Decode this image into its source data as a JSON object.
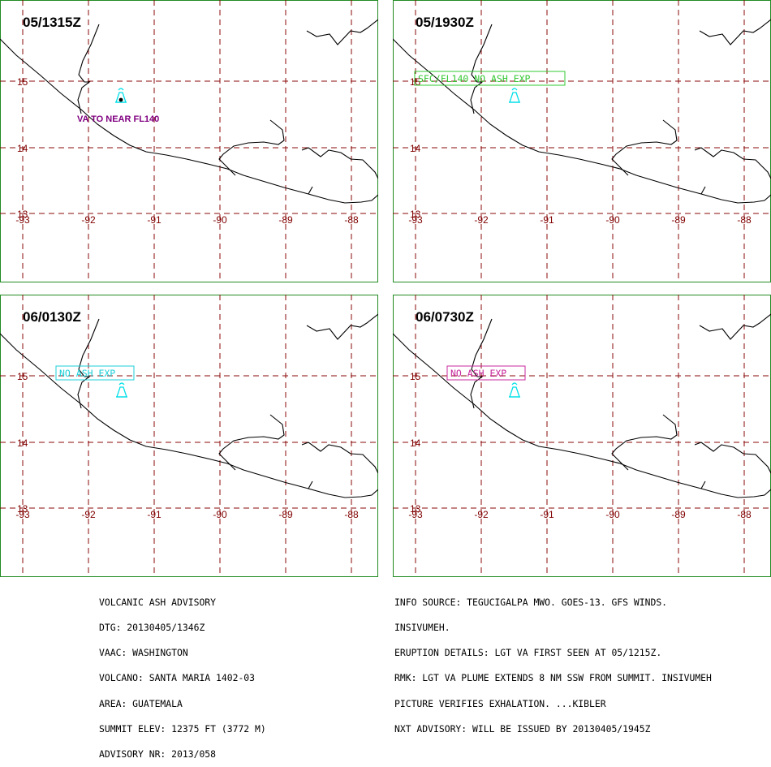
{
  "panels": [
    {
      "time": "05/1315Z",
      "show_volcano_label": true,
      "volcano_label": "VA TO NEAR FL140",
      "box_text": "",
      "box_color": ""
    },
    {
      "time": "05/1930Z",
      "show_volcano_label": false,
      "volcano_label": "",
      "box_text": "SFC/FL140  NO ASH EXP",
      "box_color": "#32c832"
    },
    {
      "time": "06/0130Z",
      "show_volcano_label": false,
      "volcano_label": "",
      "box_text": "NO ASH EXP",
      "box_color": "#1ecfd8"
    },
    {
      "time": "06/0730Z",
      "show_volcano_label": false,
      "volcano_label": "",
      "box_text": "NO ASH EXP",
      "box_color": "#c8289c"
    }
  ],
  "axes": {
    "lat_labels": [
      "15",
      "14",
      "13"
    ],
    "lon_labels": [
      "-93",
      "-92",
      "-91",
      "-90",
      "-89",
      "-88"
    ]
  },
  "colors": {
    "frame": "#228b22",
    "grid": "#8b0a0a",
    "tick_label": "#800000",
    "coast": "#000000",
    "volcano_icon": "#00e0e8",
    "volcano_label": "#800080"
  },
  "icons": {
    "volcano": "volcano-icon"
  },
  "footer_left": [
    "VOLCANIC ASH ADVISORY",
    "DTG: 20130405/1346Z",
    "VAAC: WASHINGTON",
    "VOLCANO: SANTA MARIA 1402-03",
    "AREA: GUATEMALA",
    "SUMMIT ELEV: 12375 FT (3772 M)",
    "ADVISORY NR: 2013/058"
  ],
  "footer_right": [
    "INFO SOURCE: TEGUCIGALPA MWO. GOES-13. GFS WINDS.",
    "INSIVUMEH.",
    "ERUPTION DETAILS: LGT VA FIRST SEEN AT 05/1215Z.",
    "RMK: LGT VA PLUME EXTENDS 8 NM SSW FROM SUMMIT. INSIVUMEH",
    "PICTURE VERIFIES EXHALATION. ...KIBLER",
    "NXT ADVISORY: WILL BE ISSUED BY 20130405/1945Z"
  ]
}
